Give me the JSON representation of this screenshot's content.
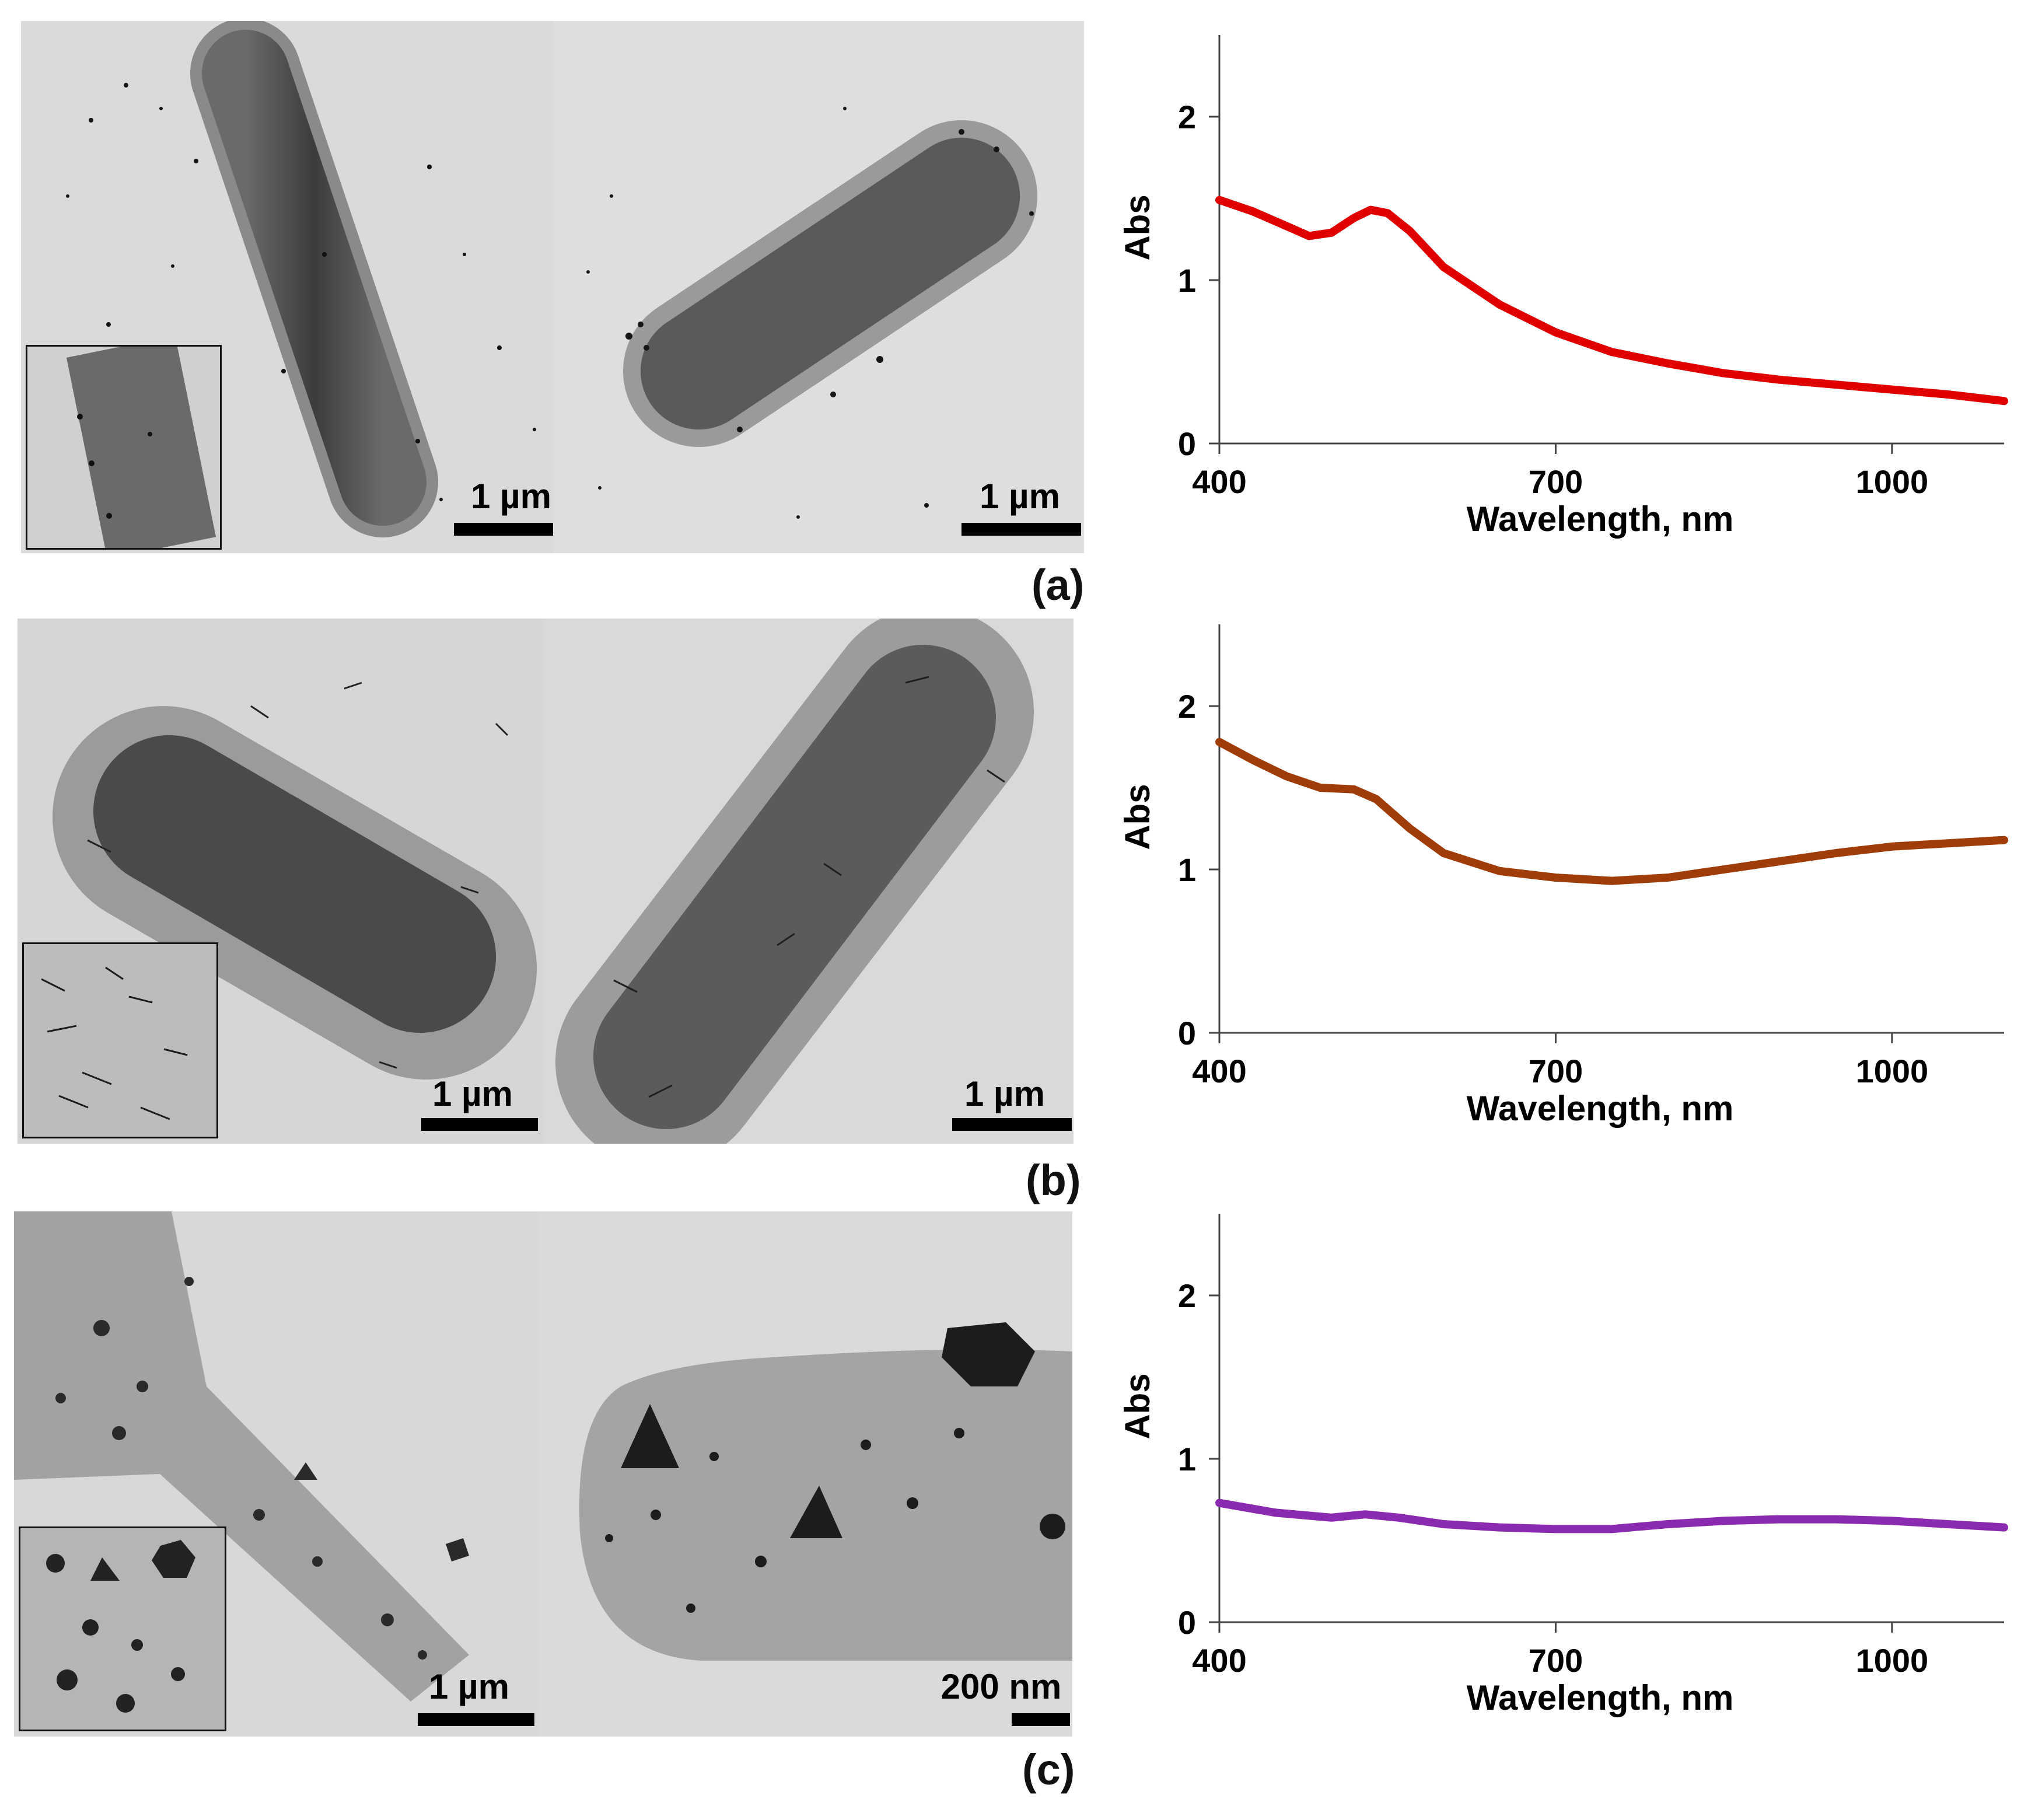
{
  "figure": {
    "panels": [
      {
        "id": "a",
        "label": "(a)",
        "scalebar_left": "1 µm",
        "scalebar_right": "1 µm"
      },
      {
        "id": "b",
        "label": "(b)",
        "scalebar_left": "1 µm",
        "scalebar_right": "1 µm"
      },
      {
        "id": "c",
        "label": "(c)",
        "scalebar_left": "1 µm",
        "scalebar_right": "200 nm"
      }
    ]
  },
  "chart_data": [
    {
      "type": "line",
      "panel": "a",
      "xlabel": "Wavelength, nm",
      "ylabel": "Abs",
      "xlim": [
        400,
        1100
      ],
      "ylim": [
        0,
        2.5
      ],
      "xticks": [
        400,
        700,
        1000
      ],
      "yticks": [
        0,
        1,
        2
      ],
      "series": [
        {
          "name": "a",
          "color": "#e00000",
          "x": [
            400,
            430,
            460,
            480,
            500,
            520,
            535,
            550,
            570,
            600,
            650,
            700,
            750,
            800,
            850,
            900,
            950,
            1000,
            1050,
            1100
          ],
          "y": [
            1.49,
            1.42,
            1.33,
            1.27,
            1.29,
            1.38,
            1.43,
            1.41,
            1.3,
            1.08,
            0.85,
            0.68,
            0.56,
            0.49,
            0.43,
            0.39,
            0.36,
            0.33,
            0.3,
            0.26
          ]
        }
      ]
    },
    {
      "type": "line",
      "panel": "b",
      "xlabel": "Wavelength, nm",
      "ylabel": "Abs",
      "xlim": [
        400,
        1100
      ],
      "ylim": [
        0,
        2.5
      ],
      "xticks": [
        400,
        700,
        1000
      ],
      "yticks": [
        0,
        1,
        2
      ],
      "series": [
        {
          "name": "b",
          "color": "#a03c08",
          "x": [
            400,
            430,
            460,
            490,
            520,
            540,
            570,
            600,
            650,
            700,
            750,
            800,
            850,
            900,
            950,
            1000,
            1050,
            1100
          ],
          "y": [
            1.78,
            1.67,
            1.57,
            1.5,
            1.49,
            1.43,
            1.25,
            1.1,
            0.99,
            0.95,
            0.93,
            0.95,
            1.0,
            1.05,
            1.1,
            1.14,
            1.16,
            1.18
          ]
        }
      ]
    },
    {
      "type": "line",
      "panel": "c",
      "xlabel": "Wavelength, nm",
      "ylabel": "Abs",
      "xlim": [
        400,
        1100
      ],
      "ylim": [
        0,
        2.5
      ],
      "xticks": [
        400,
        700,
        1000
      ],
      "yticks": [
        0,
        1,
        2
      ],
      "series": [
        {
          "name": "c",
          "color": "#8a2ab0",
          "x": [
            400,
            450,
            500,
            530,
            560,
            600,
            650,
            700,
            750,
            800,
            850,
            900,
            950,
            1000,
            1050,
            1100
          ],
          "y": [
            0.73,
            0.67,
            0.64,
            0.66,
            0.64,
            0.6,
            0.58,
            0.57,
            0.57,
            0.6,
            0.62,
            0.63,
            0.63,
            0.62,
            0.6,
            0.58
          ]
        }
      ]
    }
  ]
}
